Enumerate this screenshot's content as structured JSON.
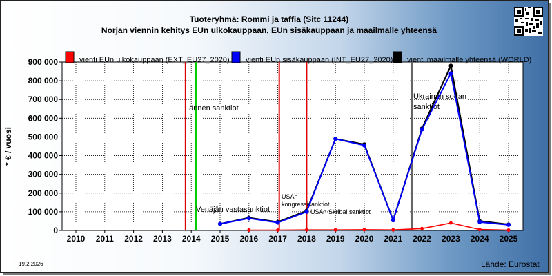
{
  "header": {
    "title": "Tuoteryhmä: Rommi ja taffia (Sitc 11244)",
    "subtitle": "Norjan viennin kehitys EUn ulkokauppaan, EUn sisäkauppaan ja maailmalle yhteensä"
  },
  "footer": {
    "date": "19.2.2026",
    "source": "Lähde: Eurostat"
  },
  "colors": {
    "ext": "#ff0000",
    "int": "#0000ff",
    "world": "#000000",
    "sanction_red": "#dd0000",
    "sanction_green": "#00cc00",
    "sanction_gray": "#666666"
  },
  "chart_data": {
    "type": "line",
    "title": "Tuoteryhmä: Rommi ja taffia (Sitc 11244)",
    "subtitle": "Norjan viennin kehitys EUn ulkokauppaan, EUn sisäkauppaan ja maailmalle yhteensä",
    "ylabel": "* € / vuosi",
    "xlabel": "",
    "x": [
      "2010",
      "2011",
      "2012",
      "2013",
      "2014",
      "2015",
      "2016",
      "2017",
      "2018",
      "2019",
      "2020",
      "2021",
      "2022",
      "2023",
      "2024",
      "2025"
    ],
    "ylim": [
      0,
      900000
    ],
    "yticks": [
      0,
      100000,
      200000,
      300000,
      400000,
      500000,
      600000,
      700000,
      800000,
      900000
    ],
    "ytick_labels": [
      "0",
      "100 000",
      "200 000",
      "300 000",
      "400 000",
      "500 000",
      "600 000",
      "700 000",
      "800 000",
      "900 000"
    ],
    "grid": true,
    "legend_position": "top",
    "series": [
      {
        "name": "vienti EUn ulkokauppaan (EXT_EU27_2020)",
        "key": "ext",
        "values": [
          null,
          null,
          null,
          null,
          null,
          null,
          2000,
          2000,
          3000,
          3000,
          4000,
          3000,
          10000,
          40000,
          5000,
          2000
        ]
      },
      {
        "name": "vienti EUn sisäkauppaan (INT_EU27_2020)",
        "key": "int",
        "values": [
          null,
          null,
          null,
          null,
          null,
          35000,
          65000,
          42000,
          100000,
          490000,
          455000,
          55000,
          540000,
          840000,
          45000,
          30000
        ]
      },
      {
        "name": "vienti maailmalle yhteensä (WORLD)",
        "key": "world",
        "values": [
          null,
          null,
          null,
          null,
          null,
          35000,
          68000,
          45000,
          105000,
          490000,
          460000,
          55000,
          545000,
          880000,
          50000,
          32000
        ]
      }
    ],
    "annotations": [
      {
        "label": "Lännen sanktiot",
        "x": 2013.8,
        "color_key": "sanction_red"
      },
      {
        "label": "",
        "x": 2014.15,
        "color_key": "sanction_green"
      },
      {
        "label": "Venäjän vastasanktiot",
        "x": null
      },
      {
        "label": "USAn kongressi sanktiot",
        "x": 2017.05,
        "color_key": "sanction_red"
      },
      {
        "label": "USAn Skribal sanktiot",
        "x": 2018.0,
        "color_key": "sanction_red"
      },
      {
        "label": "Ukrainan sodan sanktiot",
        "x": 2021.65,
        "color_key": "sanction_gray"
      }
    ]
  }
}
